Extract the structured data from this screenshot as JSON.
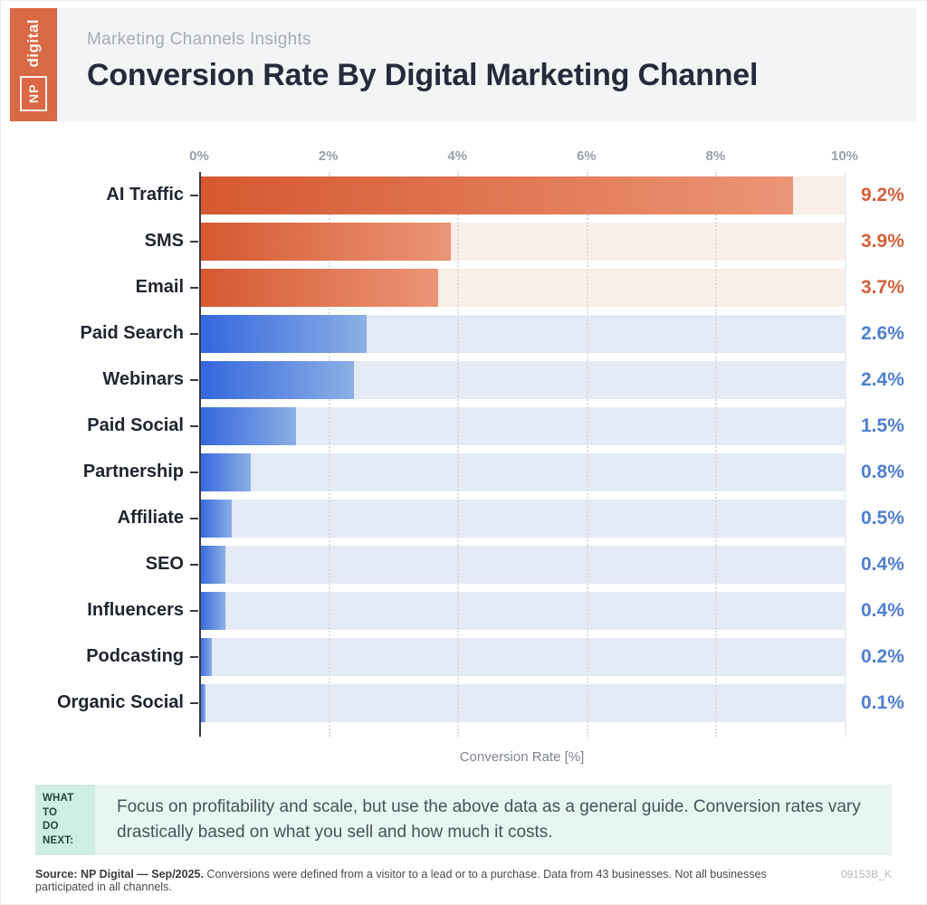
{
  "header": {
    "logo_np": "NP",
    "logo_brand": "digital",
    "eyebrow": "Marketing Channels Insights",
    "title": "Conversion Rate By Digital Marketing Channel"
  },
  "chart_data": {
    "type": "bar",
    "orientation": "horizontal",
    "title": "Conversion Rate By Digital Marketing Channel",
    "xlabel": "Conversion Rate [%]",
    "xlim": [
      0,
      10
    ],
    "x_ticks": [
      "0%",
      "2%",
      "4%",
      "6%",
      "8%",
      "10%"
    ],
    "grid": "dotted vertical gridlines at each tick",
    "legend": "none",
    "categories": [
      "AI Traffic",
      "SMS",
      "Email",
      "Paid Search",
      "Webinars",
      "Paid Social",
      "Partnership",
      "Affiliate",
      "SEO",
      "Influencers",
      "Podcasting",
      "Organic Social"
    ],
    "values": [
      9.2,
      3.9,
      3.7,
      2.6,
      2.4,
      1.5,
      0.8,
      0.5,
      0.4,
      0.4,
      0.2,
      0.1
    ],
    "value_labels": [
      "9.2%",
      "3.9%",
      "3.7%",
      "2.6%",
      "2.4%",
      "1.5%",
      "0.8%",
      "0.5%",
      "0.4%",
      "0.4%",
      "0.2%",
      "0.1%"
    ],
    "bar_types": [
      "orange",
      "orange",
      "orange",
      "blue",
      "blue",
      "blue",
      "blue",
      "blue",
      "blue",
      "blue",
      "blue",
      "blue"
    ],
    "colors": {
      "orange_bar_start": "#d5582f",
      "orange_bar_end": "#eb9577",
      "orange_track": "#faeee8",
      "orange_value_text": "#d2603c",
      "blue_bar_start": "#3366dd",
      "blue_bar_end": "#8cafe5",
      "blue_track": "#e4eaf6",
      "blue_value_text": "#4f7fd0"
    }
  },
  "callout": {
    "badge": "WHAT TO\nDO NEXT:",
    "text": "Focus on profitability and scale, but use the above data as a general guide. Conversion rates vary drastically based on what you sell and how much it costs."
  },
  "footer": {
    "source_bold": "Source: NP Digital — Sep/2025.",
    "source_rest": " Conversions were defined from a visitor to a lead or to a purchase. Data from 43 businesses. Not all businesses participated in all channels.",
    "code": "09153B_K"
  }
}
